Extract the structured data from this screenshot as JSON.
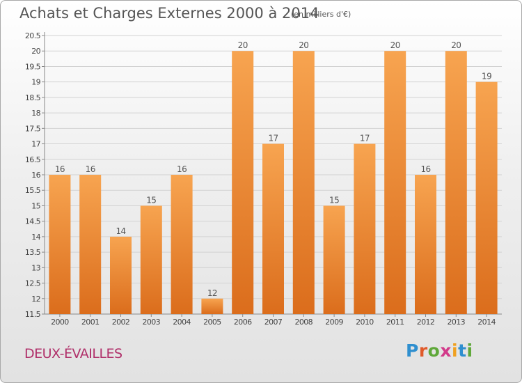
{
  "title": "Achats et Charges Externes 2000 à 2014",
  "unit_label": "(en milliers d'€)",
  "commune": "DEUX-ÉVAILLES",
  "logo": {
    "letters": [
      "P",
      "r",
      "o",
      "x",
      "i",
      "t",
      "i"
    ],
    "colors": [
      "#2f8fcf",
      "#e05a2a",
      "#5fa83a",
      "#d23a8a",
      "#f0a020",
      "#2f8fcf",
      "#5fa83a"
    ]
  },
  "colors": {
    "bar_light": "#f7a450",
    "bar_dark": "#db6d1c"
  },
  "chart_data": {
    "type": "bar",
    "categories": [
      "2000",
      "2001",
      "2002",
      "2003",
      "2004",
      "2005",
      "2006",
      "2007",
      "2008",
      "2009",
      "2010",
      "2011",
      "2012",
      "2013",
      "2014"
    ],
    "values": [
      16,
      16,
      14,
      15,
      16,
      12,
      20,
      17,
      20,
      15,
      17,
      20,
      16,
      20,
      19
    ],
    "value_labels": [
      "16",
      "16",
      "14",
      "15",
      "16",
      "12",
      "20",
      "17",
      "20",
      "15",
      "17",
      "20",
      "16",
      "20",
      "19"
    ],
    "ylim": [
      11.5,
      20.5
    ],
    "yticks": [
      "11.5",
      "12",
      "12.5",
      "13",
      "13.5",
      "14",
      "14.5",
      "15",
      "15.5",
      "16",
      "16.5",
      "17",
      "17.5",
      "18",
      "18.5",
      "19",
      "19.5",
      "20",
      "20.5"
    ],
    "grid": true
  }
}
